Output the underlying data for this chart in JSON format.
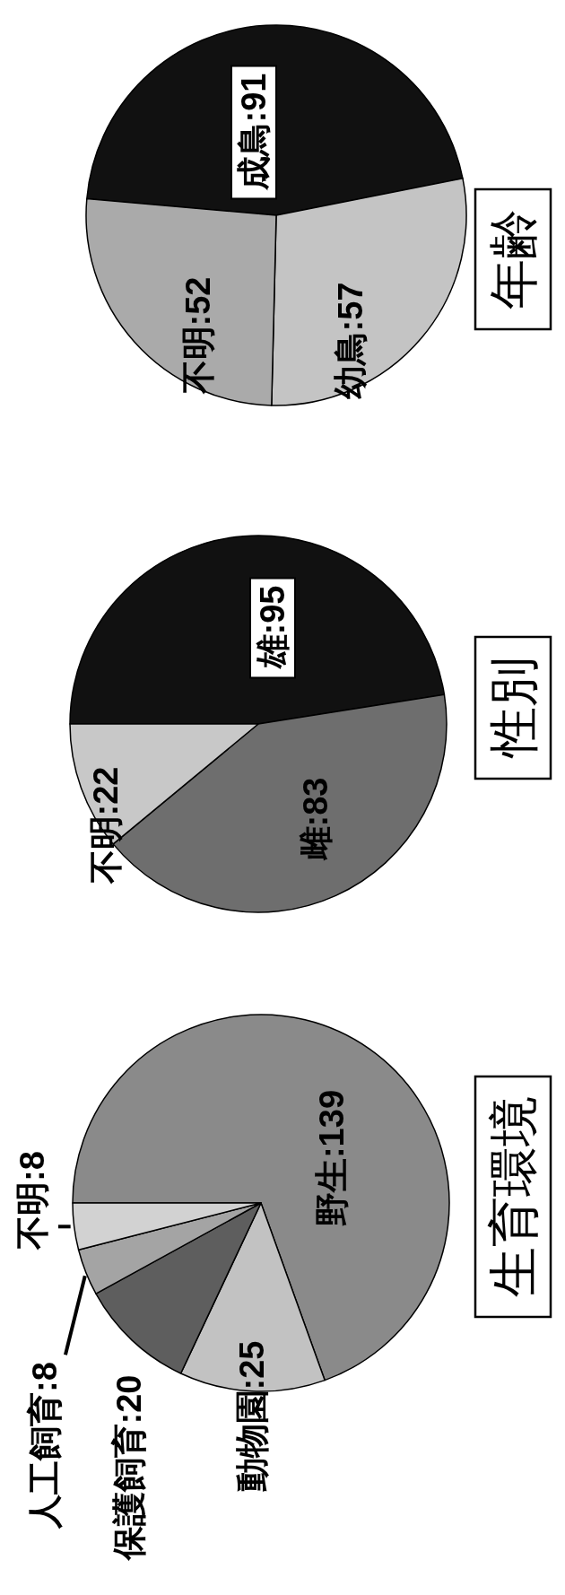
{
  "chart_data": [
    {
      "type": "pie",
      "title": "年齢",
      "categories": [
        "成鳥",
        "幼鳥",
        "不明"
      ],
      "values": [
        91,
        57,
        52
      ],
      "colors": [
        "#111111",
        "#c4c4c4",
        "#aaaaaa"
      ],
      "value_labels": [
        ":91",
        ":57",
        ":52"
      ]
    },
    {
      "type": "pie",
      "title": "性別",
      "categories": [
        "雄",
        "雌",
        "不明"
      ],
      "values": [
        95,
        83,
        22
      ],
      "colors": [
        "#111111",
        "#6e6e6e",
        "#c8c8c8"
      ],
      "value_labels": [
        ":95",
        ":83",
        ":22"
      ]
    },
    {
      "type": "pie",
      "title": "生育環境",
      "categories": [
        "野生",
        "動物園",
        "保護飼育",
        "人工飼育",
        "不明"
      ],
      "values": [
        139,
        25,
        20,
        8,
        8
      ],
      "colors": [
        "#8a8a8a",
        "#c2c2c2",
        "#5e5e5e",
        "#a4a4a4",
        "#d2d2d2"
      ],
      "value_labels": [
        ":139",
        ":25",
        ":20",
        ":8",
        ":8"
      ]
    }
  ]
}
